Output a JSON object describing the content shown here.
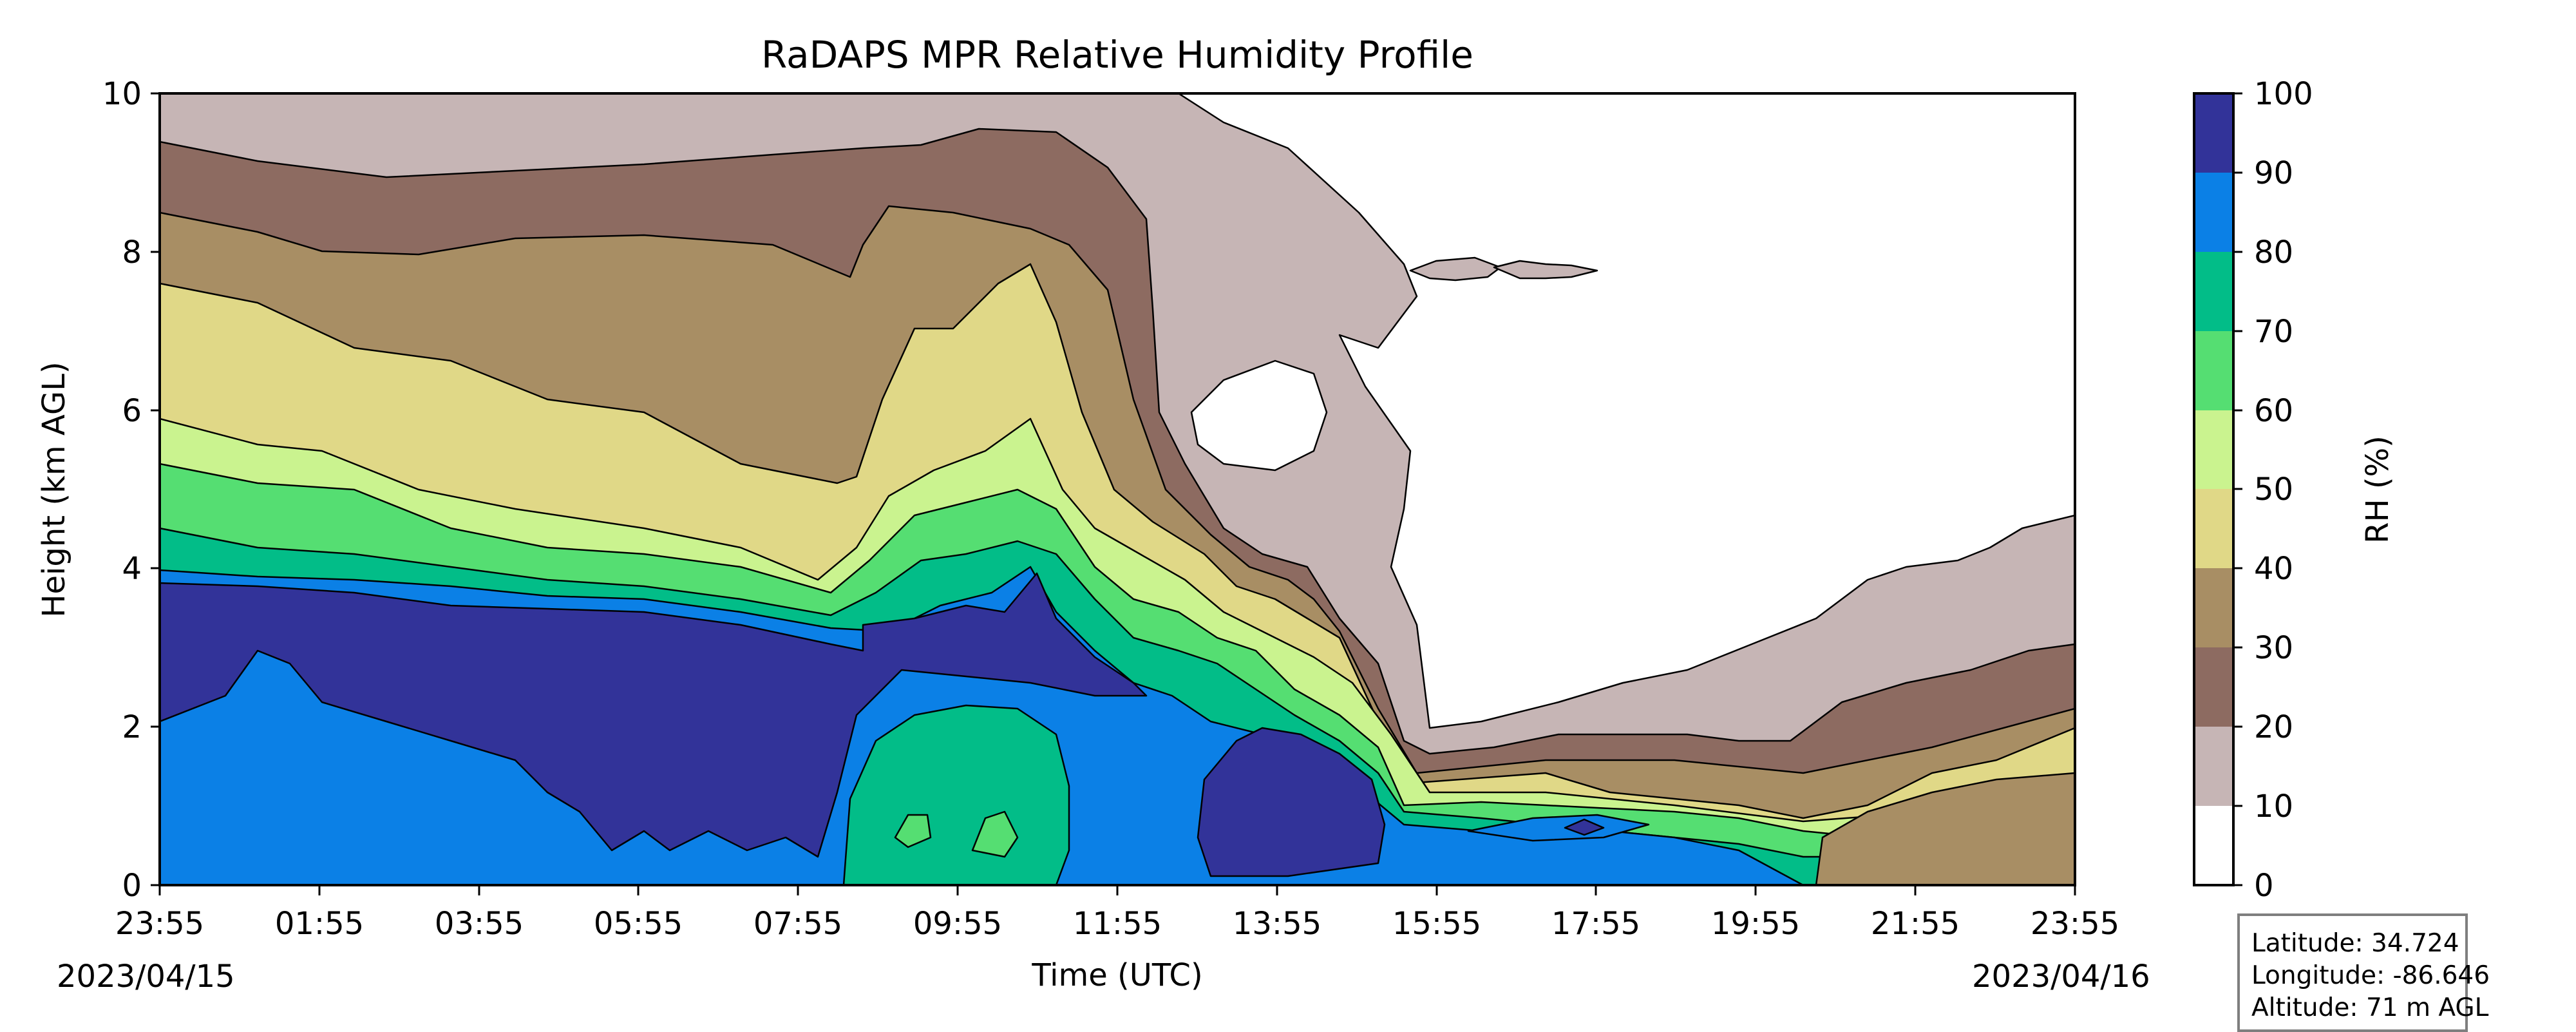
{
  "chart_data": {
    "type": "heatmap",
    "title": "RaDAPS MPR Relative Humidity Profile",
    "xlabel": "Time (UTC)",
    "ylabel": "Height (km AGL)",
    "x_ticks": [
      "23:55",
      "01:55",
      "03:55",
      "05:55",
      "07:55",
      "09:55",
      "11:55",
      "13:55",
      "15:55",
      "17:55",
      "19:55",
      "21:55",
      "23:55"
    ],
    "y_ticks": [
      0,
      2,
      4,
      6,
      8,
      10
    ],
    "ylim": [
      0,
      10
    ],
    "start_date": "2023/04/15",
    "end_date": "2023/04/16",
    "colorbar": {
      "label": "RH (%)",
      "ticks": [
        0,
        10,
        20,
        30,
        40,
        50,
        60,
        70,
        80,
        90,
        100
      ],
      "colors": [
        "#ffffff",
        "#c6b5b5",
        "#8d6b61",
        "#a88e64",
        "#e0d887",
        "#caf38f",
        "#55de72",
        "#02bd88",
        "#0b80e6",
        "#323399"
      ]
    },
    "approx_profile_bands": [
      {
        "range": "0-10",
        "region": "upper levels after ~14:30 UTC"
      },
      {
        "range": "90-100",
        "region": "~1.5-3.8 km, 23:55-11:30 UTC; near surface 13:00-15:00 UTC"
      },
      {
        "range": "10-20",
        "region": "above ~8 km early; 1-4 km after 16:00 UTC"
      }
    ]
  },
  "info": {
    "latitude": "Latitude: 34.724",
    "longitude": "Longitude: -86.646",
    "altitude": "Altitude: 71 m AGL"
  }
}
